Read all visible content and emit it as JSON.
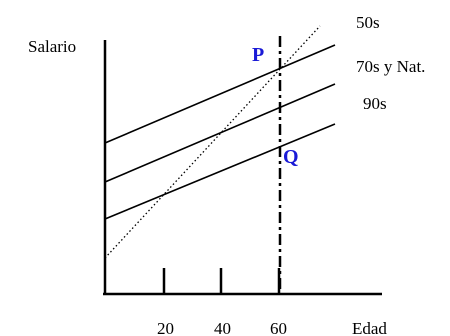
{
  "diagram": {
    "y_axis_label": "Salario",
    "x_axis_label": "Edad",
    "x_ticks": [
      "20",
      "40",
      "60"
    ],
    "line_labels": [
      "50s",
      "70s y Nat.",
      "90s"
    ],
    "points": [
      {
        "label": "P",
        "color": "#1a1ad6"
      },
      {
        "label": "Q",
        "color": "#1a1ad6"
      }
    ],
    "colors": {
      "axis": "#000000",
      "lines": "#000000",
      "point_labels": "#1a1ad6"
    }
  }
}
